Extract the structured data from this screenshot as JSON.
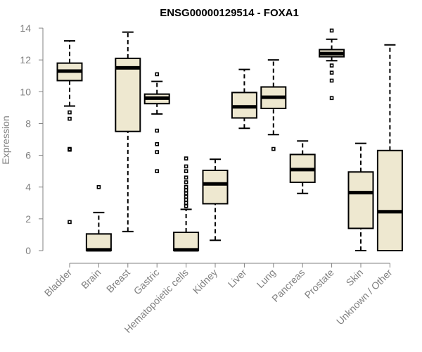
{
  "chart_data": {
    "type": "boxplot",
    "title": "ENSG00000129514 - FOXA1",
    "xlabel": "",
    "ylabel": "Expression",
    "ylim": [
      0,
      14
    ],
    "yticks": [
      0,
      2,
      4,
      6,
      8,
      10,
      12,
      14
    ],
    "grid": false,
    "box_color": "#EEE8D0",
    "categories": [
      "Bladder",
      "Brain",
      "Breast",
      "Gastric",
      "Hematopoietic cells",
      "Kidney",
      "Liver",
      "Lung",
      "Pancreas",
      "Prostate",
      "Skin",
      "Unknown / Other"
    ],
    "boxes": [
      {
        "whisker_low": 9.1,
        "q1": 10.7,
        "median": 11.3,
        "q3": 11.8,
        "whisker_high": 13.2,
        "outliers": [
          8.7,
          8.3,
          6.4,
          6.35,
          1.8
        ]
      },
      {
        "whisker_low": 0.0,
        "q1": 0.0,
        "median": 0.05,
        "q3": 1.05,
        "whisker_high": 2.4,
        "outliers": [
          4.0
        ]
      },
      {
        "whisker_low": 1.2,
        "q1": 7.5,
        "median": 11.5,
        "q3": 12.1,
        "whisker_high": 13.75,
        "outliers": []
      },
      {
        "whisker_low": 8.6,
        "q1": 9.25,
        "median": 9.6,
        "q3": 9.85,
        "whisker_high": 10.65,
        "outliers": [
          11.1,
          7.55,
          6.7,
          6.2,
          5.0
        ]
      },
      {
        "whisker_low": 0.0,
        "q1": 0.0,
        "median": 0.05,
        "q3": 1.15,
        "whisker_high": 2.6,
        "outliers": [
          2.8,
          3.0,
          3.2,
          3.4,
          3.6,
          3.8,
          4.0,
          4.3,
          4.6,
          5.0,
          5.3,
          5.8
        ]
      },
      {
        "whisker_low": 0.65,
        "q1": 2.95,
        "median": 4.2,
        "q3": 5.05,
        "whisker_high": 5.75,
        "outliers": []
      },
      {
        "whisker_low": 7.7,
        "q1": 8.35,
        "median": 9.05,
        "q3": 9.95,
        "whisker_high": 11.4,
        "outliers": []
      },
      {
        "whisker_low": 7.3,
        "q1": 8.95,
        "median": 9.65,
        "q3": 10.3,
        "whisker_high": 12.0,
        "outliers": [
          6.4
        ]
      },
      {
        "whisker_low": 3.6,
        "q1": 4.3,
        "median": 5.1,
        "q3": 6.05,
        "whisker_high": 6.9,
        "outliers": []
      },
      {
        "whisker_low": 11.95,
        "q1": 12.2,
        "median": 12.4,
        "q3": 12.65,
        "whisker_high": 13.3,
        "outliers": [
          13.85,
          11.65,
          11.2,
          10.7,
          9.6
        ]
      },
      {
        "whisker_low": 0.0,
        "q1": 1.4,
        "median": 3.65,
        "q3": 4.95,
        "whisker_high": 6.75,
        "outliers": []
      },
      {
        "whisker_low": 0.0,
        "q1": 0.0,
        "median": 2.45,
        "q3": 6.3,
        "whisker_high": 12.95,
        "outliers": []
      }
    ]
  }
}
